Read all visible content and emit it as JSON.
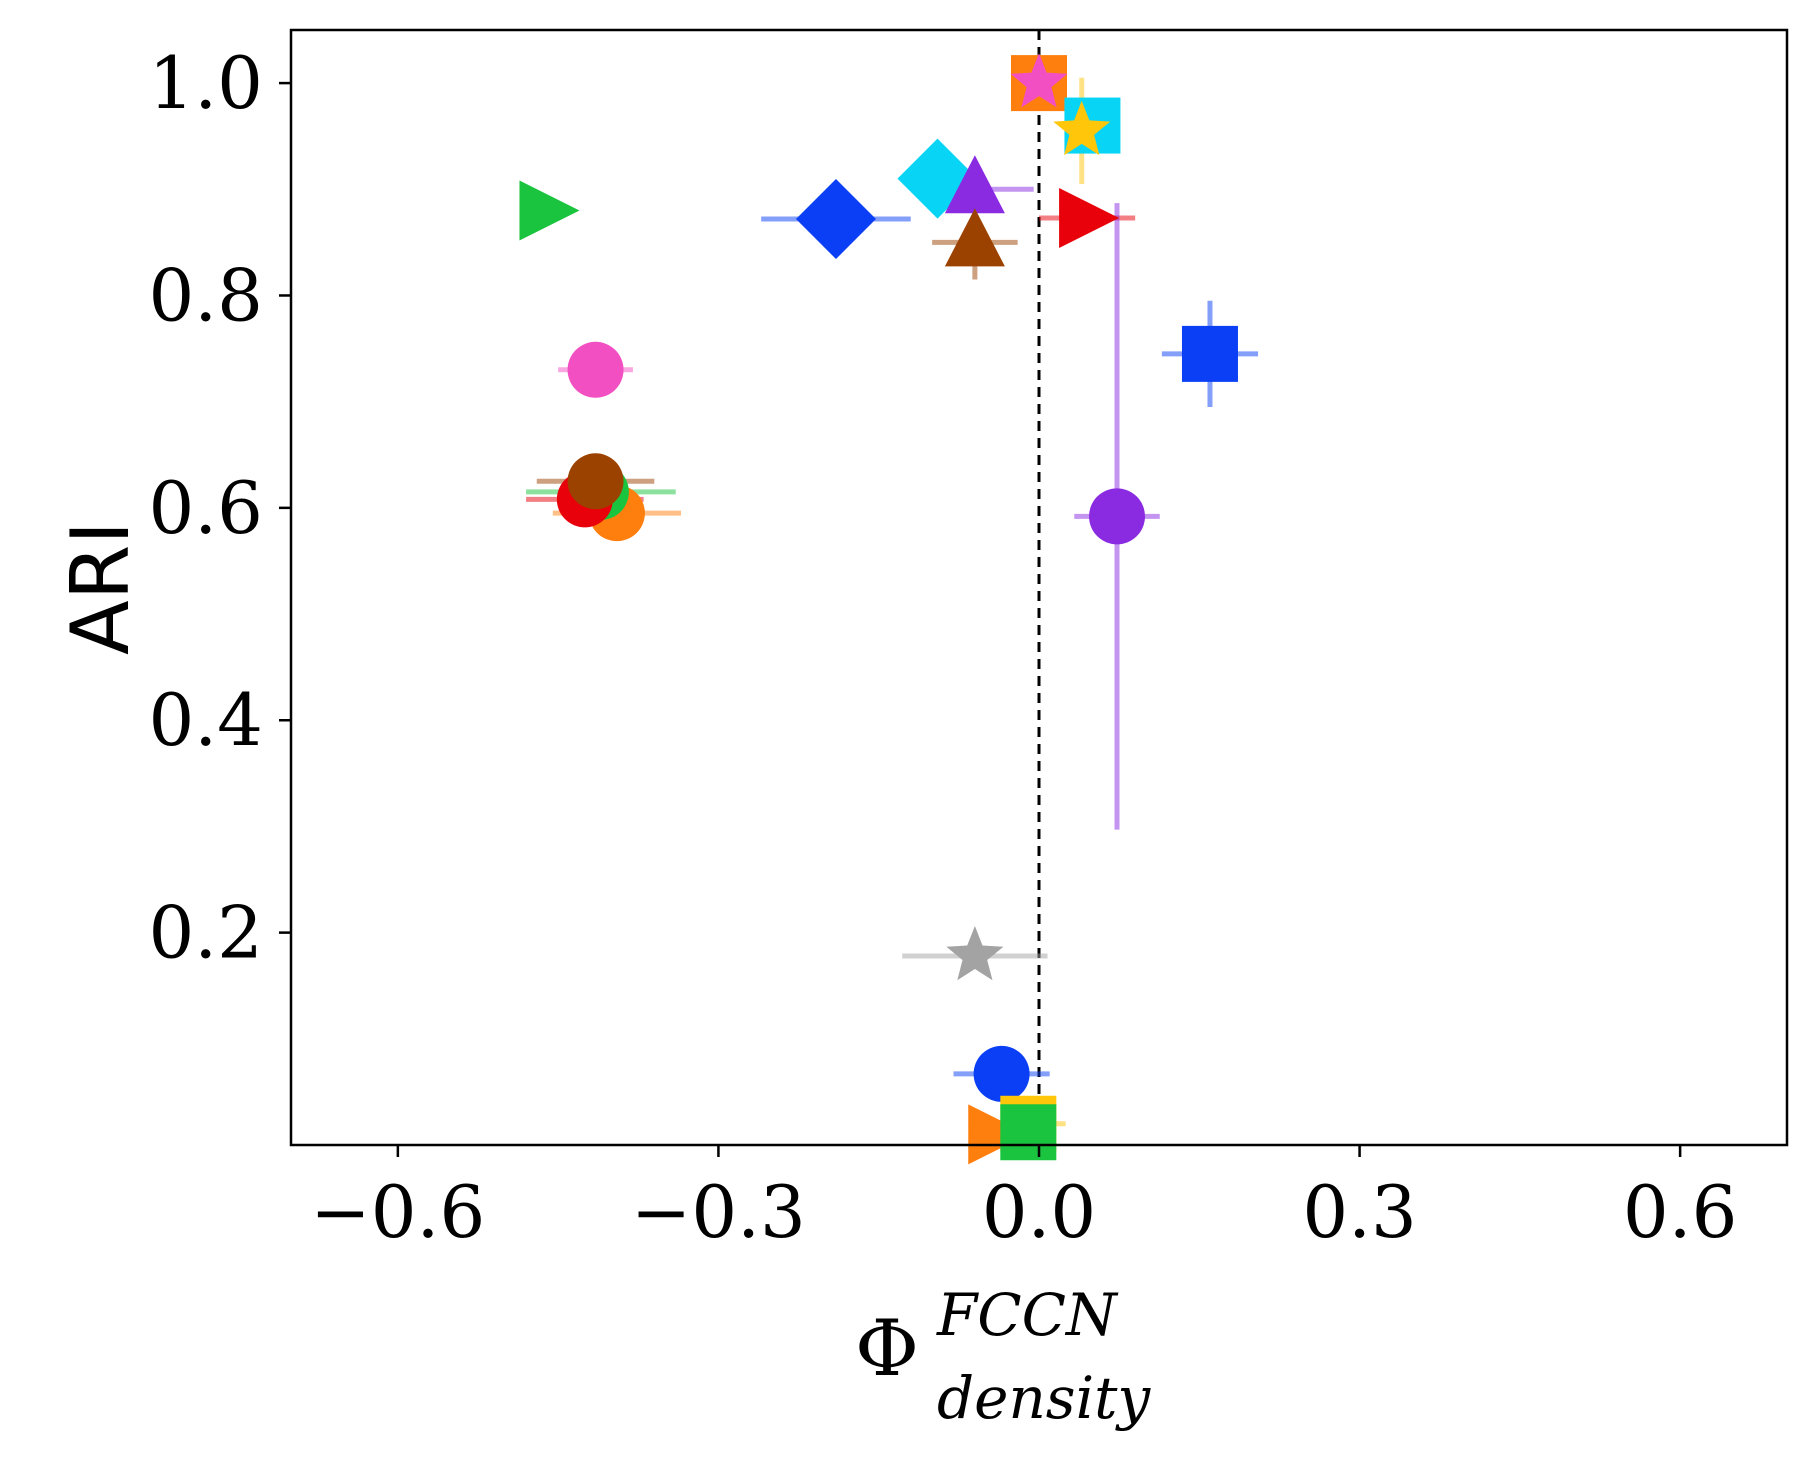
{
  "chart_data": {
    "type": "scatter",
    "title": "",
    "xlabel": {
      "base": "Φ",
      "superscript": "FCCN",
      "subscript": "density"
    },
    "ylabel": "ARI",
    "xlim": [
      -0.7,
      0.7
    ],
    "ylim": [
      0.0,
      1.05
    ],
    "xticks": [
      -0.6,
      -0.3,
      0.0,
      0.3,
      0.6
    ],
    "xtick_labels": [
      "−0.6",
      "−0.3",
      "0.0",
      "0.3",
      "0.6"
    ],
    "yticks": [
      0.2,
      0.4,
      0.6,
      0.8,
      1.0
    ],
    "ytick_labels": [
      "0.2",
      "0.4",
      "0.6",
      "0.8",
      "1.0"
    ],
    "reference_line": {
      "x": 0.0,
      "style": "dashed",
      "color": "#000000"
    },
    "points": [
      {
        "x": -0.46,
        "y": 0.88,
        "xerr": 0.0,
        "yerr": 0.0,
        "marker": "triangle-right",
        "color": "#1bc43f"
      },
      {
        "x": -0.19,
        "y": 0.872,
        "xerr": 0.07,
        "yerr": 0.0,
        "marker": "diamond",
        "color": "#0a3ff5"
      },
      {
        "x": -0.095,
        "y": 0.91,
        "xerr": 0.0,
        "yerr": 0.0,
        "marker": "diamond",
        "color": "#08d4f5"
      },
      {
        "x": -0.06,
        "y": 0.9,
        "xerr": 0.055,
        "yerr": 0.0,
        "marker": "triangle-up",
        "color": "#8a2be2"
      },
      {
        "x": -0.06,
        "y": 0.85,
        "xerr": 0.04,
        "yerr": 0.035,
        "marker": "triangle-up",
        "color": "#9c4200"
      },
      {
        "x": 0.0,
        "y": 1.0,
        "xerr": 0.0,
        "yerr": 0.0,
        "marker": "square",
        "color": "#ff7f0e"
      },
      {
        "x": 0.0,
        "y": 1.0,
        "xerr": 0.0,
        "yerr": 0.0,
        "marker": "star",
        "color": "#f24fc3"
      },
      {
        "x": 0.05,
        "y": 0.96,
        "xerr": 0.0,
        "yerr": 0.0,
        "marker": "square",
        "color": "#08d4f5"
      },
      {
        "x": 0.04,
        "y": 0.955,
        "xerr": 0.0,
        "yerr": 0.05,
        "marker": "star",
        "color": "#ffc60a"
      },
      {
        "x": 0.045,
        "y": 0.873,
        "xerr": 0.045,
        "yerr": 0.0,
        "marker": "triangle-right",
        "color": "#e8000b"
      },
      {
        "x": 0.16,
        "y": 0.745,
        "xerr": 0.045,
        "yerr": 0.05,
        "marker": "square",
        "color": "#0a3ff5"
      },
      {
        "x": 0.073,
        "y": 0.592,
        "xerr": 0.04,
        "yerr": 0.295,
        "marker": "circle",
        "color": "#8a2be2"
      },
      {
        "x": -0.415,
        "y": 0.73,
        "xerr": 0.035,
        "yerr": 0.0,
        "marker": "circle",
        "color": "#f24fc3"
      },
      {
        "x": -0.395,
        "y": 0.595,
        "xerr": 0.06,
        "yerr": 0.0,
        "marker": "circle",
        "color": "#ff7f0e"
      },
      {
        "x": -0.41,
        "y": 0.615,
        "xerr": 0.07,
        "yerr": 0.0,
        "marker": "circle",
        "color": "#1bc43f"
      },
      {
        "x": -0.425,
        "y": 0.608,
        "xerr": 0.055,
        "yerr": 0.0,
        "marker": "circle",
        "color": "#e8000b"
      },
      {
        "x": -0.415,
        "y": 0.625,
        "xerr": 0.055,
        "yerr": 0.0,
        "marker": "circle",
        "color": "#9c4200"
      },
      {
        "x": -0.06,
        "y": 0.178,
        "xerr": 0.068,
        "yerr": 0.0,
        "marker": "star",
        "color": "#a3a3a3"
      },
      {
        "x": -0.035,
        "y": 0.067,
        "xerr": 0.045,
        "yerr": 0.0,
        "marker": "circle",
        "color": "#0a3ff5"
      },
      {
        "x": -0.01,
        "y": 0.02,
        "xerr": 0.035,
        "yerr": 0.0,
        "marker": "square",
        "color": "#ffc60a"
      },
      {
        "x": -0.04,
        "y": 0.01,
        "xerr": 0.0,
        "yerr": 0.0,
        "marker": "triangle-right",
        "color": "#ff7f0e"
      },
      {
        "x": -0.01,
        "y": 0.012,
        "xerr": 0.0,
        "yerr": 0.0,
        "marker": "square",
        "color": "#1bc43f"
      }
    ]
  }
}
